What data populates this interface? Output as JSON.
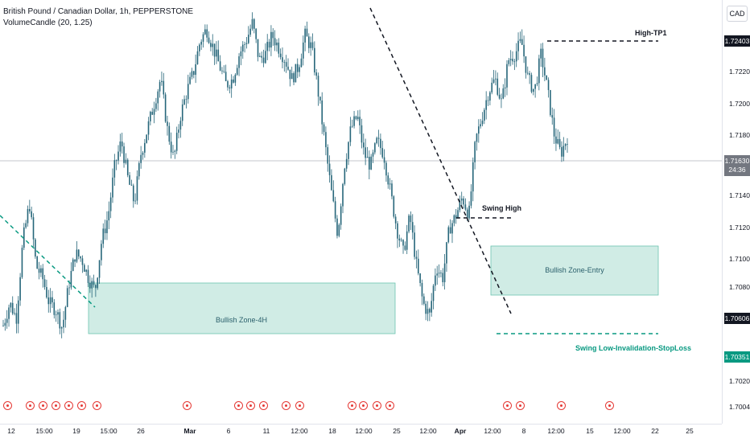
{
  "header": {
    "title": "British Pound / Canadian Dollar, 1h, PEPPERSTONE",
    "indicator": "VolumeCandle (20, 1.25)"
  },
  "currency": "CAD",
  "price_ticks": [
    "1.72400",
    "1.72200",
    "1.72000",
    "1.71800",
    "1.71600",
    "1.71400",
    "1.71200",
    "1.71000",
    "1.70800",
    "1.70600",
    "1.70400",
    "1.70200",
    "1.70040"
  ],
  "time_labels": [
    "12",
    "15:00",
    "19",
    "15:00",
    "26",
    "Mar",
    "6",
    "11",
    "12:00",
    "18",
    "12:00",
    "25",
    "12:00",
    "Apr",
    "12:00",
    "8",
    "12:00",
    "15",
    "12:00",
    "22",
    "25"
  ],
  "price_tags": {
    "high_tp": "1.72403",
    "current": "1.71630",
    "countdown": "24:36",
    "entry_low": "1.70606",
    "stoploss": "1.70351"
  },
  "annotations": {
    "high_tp1": "High-TP1",
    "swing_high": "Swing High",
    "zone_4h": "Bullish Zone-4H",
    "zone_entry": "Bullish Zone-Entry",
    "stoploss": "Swing Low-Invalidation-StopLoss"
  },
  "colors": {
    "candle": "#26667a",
    "zone_fill": "#d0ece5",
    "zone_border": "#6cc4b0",
    "teal_line": "#089981",
    "black_line": "#131722",
    "flag": "#e53935"
  },
  "chart_data": {
    "type": "candlestick",
    "symbol": "British Pound / Canadian Dollar",
    "interval": "1h",
    "ylim": [
      1.7004,
      1.724
    ],
    "levels": {
      "high_tp1": 1.72403,
      "current": 1.7163,
      "entry_zone": [
        1.70606,
        1.7108
      ],
      "zone_4h": [
        1.70351,
        1.7084
      ],
      "stoploss": 1.70351
    },
    "path": [
      1.7012,
      1.703,
      1.7018,
      1.708,
      1.711,
      1.706,
      1.705,
      1.703,
      1.7025,
      1.701,
      1.7045,
      1.707,
      1.7065,
      1.705,
      1.704,
      1.708,
      1.71,
      1.714,
      1.716,
      1.713,
      1.711,
      1.715,
      1.717,
      1.719,
      1.721,
      1.717,
      1.7145,
      1.718,
      1.72,
      1.7215,
      1.724,
      1.725,
      1.7235,
      1.722,
      1.7205,
      1.721,
      1.723,
      1.724,
      1.7255,
      1.7225,
      1.723,
      1.7245,
      1.7235,
      1.7225,
      1.721,
      1.722,
      1.7245,
      1.7235,
      1.72,
      1.716,
      1.712,
      1.7085,
      1.714,
      1.717,
      1.718,
      1.715,
      1.714,
      1.716,
      1.715,
      1.712,
      1.709,
      1.707,
      1.71,
      1.706,
      1.703,
      1.702,
      1.706,
      1.705,
      1.709,
      1.71,
      1.7115,
      1.71,
      1.716,
      1.718,
      1.72,
      1.721,
      1.719,
      1.7225,
      1.723,
      1.724,
      1.721,
      1.72,
      1.723,
      1.72,
      1.7165,
      1.715,
      1.7163
    ],
    "flags_count": 21
  }
}
